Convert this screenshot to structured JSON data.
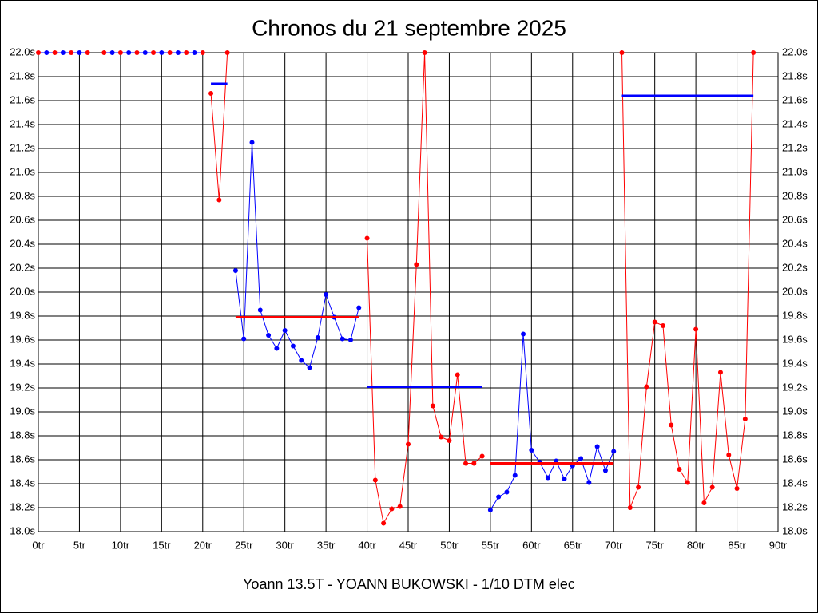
{
  "chart_data": {
    "type": "line",
    "title": "Chronos du 21 septembre 2025",
    "subtitle": "Yoann 13.5T - YOANN BUKOWSKI - 1/10 DTM elec",
    "xlim": [
      0,
      90
    ],
    "ylim": [
      18,
      22
    ],
    "grid": true,
    "xticks": [
      {
        "value": 0,
        "label": "0tr"
      },
      {
        "value": 5,
        "label": "5tr"
      },
      {
        "value": 10,
        "label": "10tr"
      },
      {
        "value": 15,
        "label": "15tr"
      },
      {
        "value": 20,
        "label": "20tr"
      },
      {
        "value": 25,
        "label": "25tr"
      },
      {
        "value": 30,
        "label": "30tr"
      },
      {
        "value": 35,
        "label": "35tr"
      },
      {
        "value": 40,
        "label": "40tr"
      },
      {
        "value": 45,
        "label": "45tr"
      },
      {
        "value": 50,
        "label": "50tr"
      },
      {
        "value": 55,
        "label": "55tr"
      },
      {
        "value": 60,
        "label": "60tr"
      },
      {
        "value": 65,
        "label": "65tr"
      },
      {
        "value": 70,
        "label": "70tr"
      },
      {
        "value": 75,
        "label": "75tr"
      },
      {
        "value": 80,
        "label": "80tr"
      },
      {
        "value": 85,
        "label": "85tr"
      },
      {
        "value": 90,
        "label": "90tr"
      }
    ],
    "yticks": [
      {
        "value": 18.0,
        "label": "18.0s"
      },
      {
        "value": 18.2,
        "label": "18.2s"
      },
      {
        "value": 18.4,
        "label": "18.4s"
      },
      {
        "value": 18.6,
        "label": "18.6s"
      },
      {
        "value": 18.8,
        "label": "18.8s"
      },
      {
        "value": 19.0,
        "label": "19.0s"
      },
      {
        "value": 19.2,
        "label": "19.2s"
      },
      {
        "value": 19.4,
        "label": "19.4s"
      },
      {
        "value": 19.6,
        "label": "19.6s"
      },
      {
        "value": 19.8,
        "label": "19.8s"
      },
      {
        "value": 20.0,
        "label": "20.0s"
      },
      {
        "value": 20.2,
        "label": "20.2s"
      },
      {
        "value": 20.4,
        "label": "20.4s"
      },
      {
        "value": 20.6,
        "label": "20.6s"
      },
      {
        "value": 20.8,
        "label": "20.8s"
      },
      {
        "value": 21.0,
        "label": "21.0s"
      },
      {
        "value": 21.2,
        "label": "21.2s"
      },
      {
        "value": 21.4,
        "label": "21.4s"
      },
      {
        "value": 21.6,
        "label": "21.6s"
      },
      {
        "value": 21.8,
        "label": "21.8s"
      },
      {
        "value": 22.0,
        "label": "22.0s"
      }
    ],
    "series": [
      {
        "color": "#0000ff",
        "marker_colors": [
          "#ff0000",
          "#0000ff"
        ],
        "x": [
          0,
          1,
          2,
          3,
          4,
          5,
          6,
          7,
          8,
          9,
          10,
          11,
          12,
          13,
          14,
          15,
          16,
          17,
          18,
          19,
          20
        ],
        "values": [
          22,
          22,
          22,
          22,
          22,
          22,
          22,
          null,
          22,
          22,
          22,
          22,
          22,
          22,
          22,
          22,
          22,
          22,
          22,
          22,
          22
        ]
      },
      {
        "color": "#ff0000",
        "x": [
          21,
          22,
          23
        ],
        "values": [
          21.66,
          20.77,
          22.0
        ]
      },
      {
        "color": "#0000ff",
        "x": [
          24,
          25,
          26,
          27,
          28,
          29,
          30,
          31,
          32,
          33,
          34,
          35,
          36,
          37,
          38,
          39
        ],
        "values": [
          20.18,
          19.61,
          21.25,
          19.85,
          19.64,
          19.53,
          19.68,
          19.55,
          19.43,
          19.37,
          19.62,
          19.98,
          19.79,
          19.61,
          19.6,
          19.87
        ]
      },
      {
        "color": "#ff0000",
        "x": [
          40,
          41,
          42,
          43,
          44,
          45,
          46,
          47,
          48,
          49,
          50,
          51,
          52,
          53,
          54
        ],
        "values": [
          20.45,
          18.43,
          18.07,
          18.19,
          18.21,
          18.73,
          20.23,
          22.0,
          19.05,
          18.79,
          18.76,
          19.31,
          18.57,
          18.57,
          18.63
        ]
      },
      {
        "color": "#0000ff",
        "x": [
          55,
          56,
          57,
          58,
          59,
          60,
          61,
          62,
          63,
          64,
          65,
          66,
          67,
          68,
          69,
          70
        ],
        "values": [
          18.18,
          18.29,
          18.33,
          18.47,
          19.65,
          18.68,
          18.58,
          18.45,
          18.59,
          18.44,
          18.55,
          18.61,
          18.41,
          18.71,
          18.51,
          18.67
        ]
      },
      {
        "color": "#ff0000",
        "x": [
          71,
          72,
          73,
          74,
          75,
          76,
          77,
          78,
          79,
          80,
          81,
          82,
          83,
          84,
          85,
          86,
          87
        ],
        "values": [
          22.0,
          18.2,
          18.37,
          19.21,
          19.75,
          19.72,
          18.89,
          18.52,
          18.41,
          19.69,
          18.24,
          18.37,
          19.33,
          18.64,
          18.36,
          18.94,
          22.0
        ]
      }
    ],
    "averages": [
      {
        "color": "#0000ff",
        "x": [
          21,
          23
        ],
        "value": 21.74
      },
      {
        "color": "#ff0000",
        "x": [
          24,
          39
        ],
        "value": 19.79
      },
      {
        "color": "#0000ff",
        "x": [
          40,
          54
        ],
        "value": 19.21
      },
      {
        "color": "#ff0000",
        "x": [
          55,
          70
        ],
        "value": 18.57
      },
      {
        "color": "#0000ff",
        "x": [
          71,
          87
        ],
        "value": 21.64
      }
    ]
  }
}
